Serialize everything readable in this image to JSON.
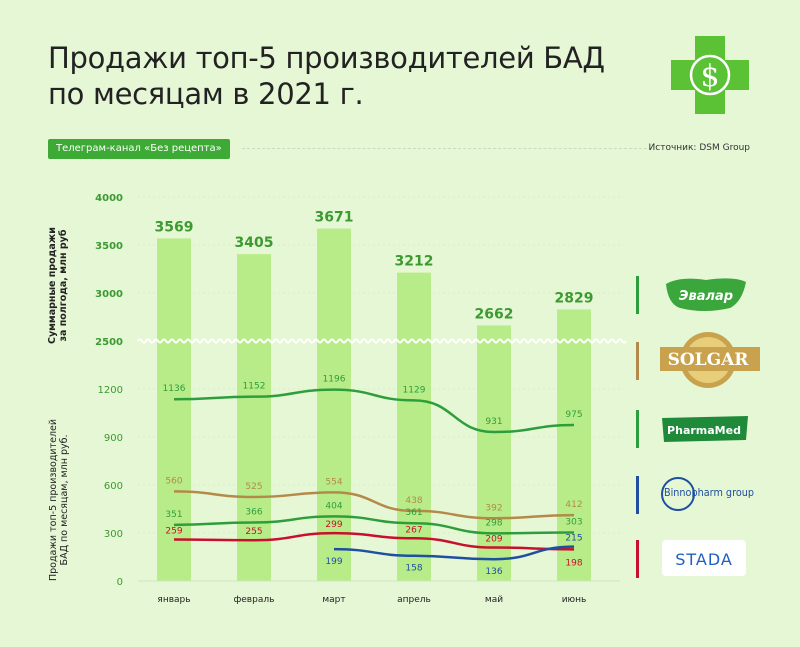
{
  "title": {
    "line1": "Продажи топ-5 производителей БАД",
    "line2": "по месяцам в 2021 г."
  },
  "channel_tag": "Телеграм-канал «Без рецепта»",
  "source": "Источник: DSM Group",
  "y_label_top": {
    "line1": "Суммарные продажи",
    "line2": "за полгода, млн руб"
  },
  "y_label_bottom": {
    "line1": "Продажи топ-5 производителей",
    "line2": "БАД по месяцам, млн руб."
  },
  "brands": [
    {
      "name": "Эвалар",
      "color": "#2e9e3c"
    },
    {
      "name": "SOLGAR",
      "color": "#b48a4a"
    },
    {
      "name": "PharmaMed",
      "color": "#2e9e3c"
    },
    {
      "name": "Binnopharm group",
      "color": "#1f4fa0"
    },
    {
      "name": "STADA",
      "color": "#c8102e"
    }
  ],
  "chart_data": [
    {
      "type": "bar",
      "title": "",
      "ylabel": "Суммарные продажи за полгода, млн руб",
      "categories": [
        "январь",
        "февраль",
        "март",
        "апрель",
        "май",
        "июнь"
      ],
      "values": [
        3569,
        3405,
        3671,
        3212,
        2662,
        2829
      ],
      "ylim": [
        2500,
        4000
      ],
      "y_ticks": [
        "2500",
        "3000",
        "3500",
        "4000"
      ],
      "color": "#b8ec88"
    },
    {
      "type": "line",
      "ylabel": "Продажи топ-5 производителей БАД по месяцам, млн руб.",
      "categories": [
        "январь",
        "февраль",
        "март",
        "апрель",
        "май",
        "июнь"
      ],
      "ylim": [
        0,
        1200
      ],
      "y_ticks": [
        "0",
        "300",
        "600",
        "900",
        "1200"
      ],
      "series": [
        {
          "name": "Эвалар",
          "color": "#2e9e3c",
          "values": [
            1136,
            1152,
            1196,
            1129,
            931,
            975
          ]
        },
        {
          "name": "SOLGAR",
          "color": "#b48a4a",
          "values": [
            560,
            525,
            554,
            438,
            392,
            412
          ]
        },
        {
          "name": "PharmaMed",
          "color": "#2e9e3c",
          "values": [
            351,
            366,
            404,
            361,
            298,
            303
          ]
        },
        {
          "name": "STADA",
          "color": "#c8102e",
          "values": [
            259,
            255,
            299,
            267,
            209,
            198
          ]
        },
        {
          "name": "Binnopharm group",
          "color": "#1f4fa0",
          "values": [
            null,
            null,
            199,
            158,
            136,
            215
          ]
        }
      ]
    }
  ]
}
